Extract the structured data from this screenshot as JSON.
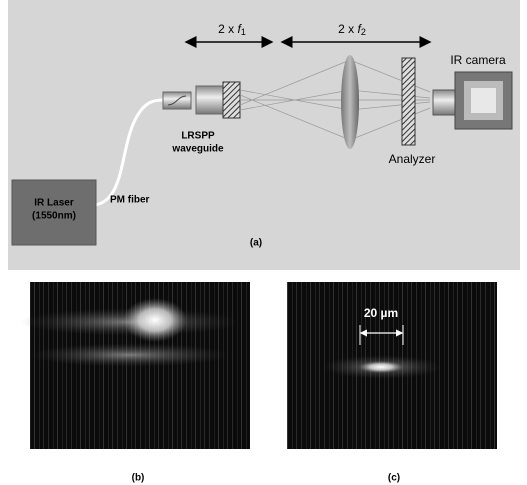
{
  "panel_a": {
    "dist1": {
      "prefix": "2 x ",
      "var": "f",
      "sub": "1"
    },
    "dist2": {
      "prefix": "2 x ",
      "var": "f",
      "sub": "2"
    },
    "camera": "IR camera",
    "waveguide": [
      "LRSPP",
      "waveguide"
    ],
    "analyzer": "Analyzer",
    "laser": [
      "IR Laser",
      "(1550nm)"
    ],
    "fiber": "PM fiber",
    "label": "(a)"
  },
  "panel_b": {
    "label": "(b)"
  },
  "panel_c": {
    "scale": "20 µm",
    "label": "(c)"
  }
}
